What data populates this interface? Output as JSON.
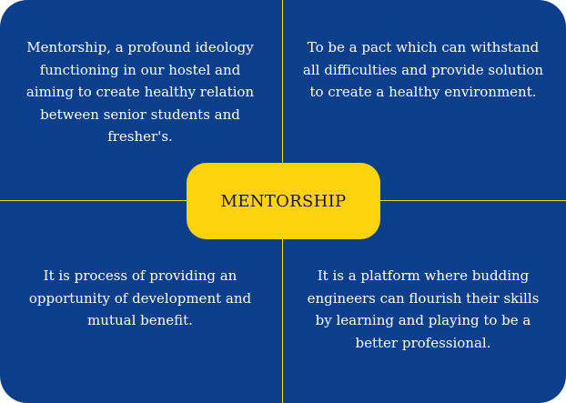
{
  "center": {
    "label": "MENTORSHIP"
  },
  "quadrants": {
    "top_left": "Mentorship, a profound ideology functioning in our hostel and aiming to create healthy relation between senior students and fresher's.",
    "top_right": "To be a pact which can withstand all difficulties and provide solution to create a healthy environment.",
    "bottom_left": "It is process of providing an opportunity of development and mutual benefit.",
    "bottom_right": "It is a platform where budding engineers can flourish their skills by learning and playing to be a better professional."
  },
  "colors": {
    "background": "#0b3f8c",
    "accent": "#ffd20f",
    "text": "#ffffff"
  }
}
